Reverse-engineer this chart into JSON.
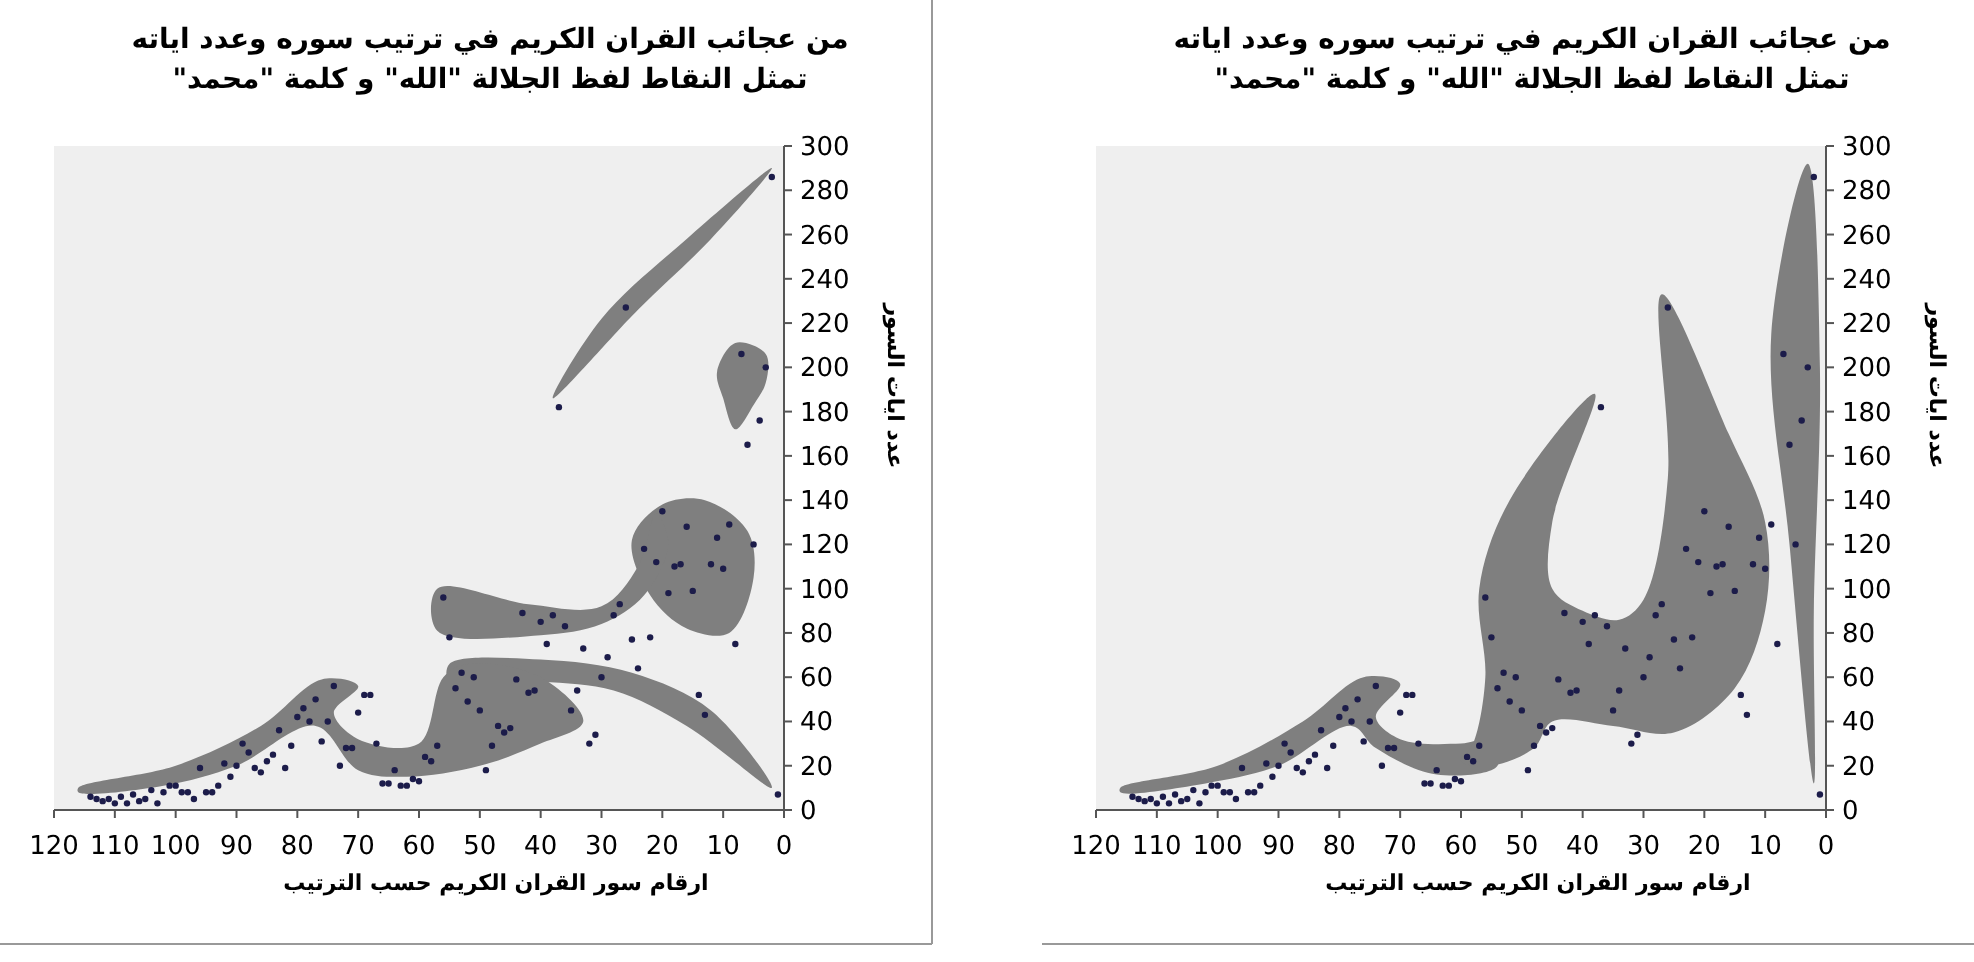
{
  "chart_data": [
    {
      "type": "scatter",
      "title": "من عجائب القران الكريم في ترتيب سوره وعدد اياته",
      "subtitle": "تمثل النقاط لفظ الجلالة \"الله\" و كلمة \"محمد\"",
      "xlabel": "ارقام سور القران الكريم حسب  الترتيب",
      "ylabel": "عدد ايات السور",
      "marker": "circle",
      "color": "#1c1c4a",
      "x": [
        1,
        2,
        3,
        4,
        5,
        6,
        7,
        8,
        9,
        10,
        11,
        12,
        13,
        14,
        15,
        16,
        17,
        18,
        19,
        20,
        21,
        22,
        23,
        24,
        25,
        26,
        27,
        28,
        29,
        30,
        31,
        32,
        33,
        34,
        35,
        36,
        37,
        38,
        39,
        40,
        41,
        42,
        43,
        44,
        45,
        46,
        47,
        48,
        49,
        50,
        51,
        52,
        53,
        54,
        55,
        56,
        57,
        58,
        59,
        60,
        61,
        62,
        63,
        64,
        65,
        66,
        67,
        68,
        69,
        70,
        71,
        72,
        73,
        74,
        75,
        76,
        77,
        78,
        79,
        80,
        81,
        82,
        83,
        84,
        85,
        86,
        87,
        88,
        89,
        90,
        91,
        92,
        93,
        94,
        95,
        96,
        97,
        98,
        99,
        100,
        101,
        102,
        103,
        104,
        105,
        106,
        107,
        108,
        109,
        110,
        111,
        112,
        113,
        114
      ],
      "values": [
        7,
        286,
        200,
        176,
        120,
        165,
        206,
        75,
        129,
        109,
        123,
        111,
        43,
        52,
        99,
        128,
        111,
        110,
        98,
        135,
        112,
        78,
        118,
        64,
        77,
        227,
        93,
        88,
        69,
        60,
        34,
        30,
        73,
        54,
        45,
        83,
        182,
        88,
        75,
        85,
        54,
        53,
        89,
        59,
        37,
        35,
        38,
        29,
        18,
        45,
        60,
        49,
        62,
        55,
        78,
        96,
        29,
        22,
        24,
        13,
        14,
        11,
        11,
        18,
        12,
        12,
        30,
        52,
        52,
        44,
        28,
        28,
        20,
        56,
        40,
        31,
        50,
        40,
        46,
        42,
        29,
        19,
        36,
        25,
        22,
        17,
        19,
        26,
        30,
        20,
        15,
        21,
        11,
        8,
        8,
        19,
        5,
        8,
        8,
        11,
        11,
        8,
        3,
        9,
        5,
        4,
        7,
        3,
        6,
        3,
        5,
        4,
        5,
        6
      ],
      "xlim": [
        120,
        0
      ],
      "xticks": [
        120,
        110,
        100,
        90,
        80,
        70,
        60,
        50,
        40,
        30,
        20,
        10,
        0
      ],
      "ylim": [
        0,
        300
      ],
      "yticks": [
        0,
        20,
        40,
        60,
        80,
        100,
        120,
        140,
        160,
        180,
        200,
        220,
        240,
        260,
        280,
        300
      ]
    },
    {
      "type": "scatter",
      "title": "من عجائب القران الكريم في ترتيب سوره وعدد اياته",
      "subtitle": "تمثل النقاط لفظ الجلالة \"الله\" و كلمة \"محمد\"",
      "xlabel": "ارقام سور القران الكريم حسب  الترتيب",
      "ylabel": "عدد ايات السور",
      "marker": "circle",
      "color": "#1c1c4a",
      "x": [
        1,
        2,
        3,
        4,
        5,
        6,
        7,
        8,
        9,
        10,
        11,
        12,
        13,
        14,
        15,
        16,
        17,
        18,
        19,
        20,
        21,
        22,
        23,
        24,
        25,
        26,
        27,
        28,
        29,
        30,
        31,
        32,
        33,
        34,
        35,
        36,
        37,
        38,
        39,
        40,
        41,
        42,
        43,
        44,
        45,
        46,
        47,
        48,
        49,
        50,
        51,
        52,
        53,
        54,
        55,
        56,
        57,
        58,
        59,
        60,
        61,
        62,
        63,
        64,
        65,
        66,
        67,
        68,
        69,
        70,
        71,
        72,
        73,
        74,
        75,
        76,
        77,
        78,
        79,
        80,
        81,
        82,
        83,
        84,
        85,
        86,
        87,
        88,
        89,
        90,
        91,
        92,
        93,
        94,
        95,
        96,
        97,
        98,
        99,
        100,
        101,
        102,
        103,
        104,
        105,
        106,
        107,
        108,
        109,
        110,
        111,
        112,
        113,
        114
      ],
      "values": [
        7,
        286,
        200,
        176,
        120,
        165,
        206,
        75,
        129,
        109,
        123,
        111,
        43,
        52,
        99,
        128,
        111,
        110,
        98,
        135,
        112,
        78,
        118,
        64,
        77,
        227,
        93,
        88,
        69,
        60,
        34,
        30,
        73,
        54,
        45,
        83,
        182,
        88,
        75,
        85,
        54,
        53,
        89,
        59,
        37,
        35,
        38,
        29,
        18,
        45,
        60,
        49,
        62,
        55,
        78,
        96,
        29,
        22,
        24,
        13,
        14,
        11,
        11,
        18,
        12,
        12,
        30,
        52,
        52,
        44,
        28,
        28,
        20,
        56,
        40,
        31,
        50,
        40,
        46,
        42,
        29,
        19,
        36,
        25,
        22,
        17,
        19,
        26,
        30,
        20,
        15,
        21,
        11,
        8,
        8,
        19,
        5,
        8,
        8,
        11,
        11,
        8,
        3,
        9,
        5,
        4,
        7,
        3,
        6,
        3,
        5,
        4,
        5,
        6
      ],
      "xlim": [
        120,
        0
      ],
      "xticks": [
        120,
        110,
        100,
        90,
        80,
        70,
        60,
        50,
        40,
        30,
        20,
        10,
        0
      ],
      "ylim": [
        0,
        300
      ],
      "yticks": [
        0,
        20,
        40,
        60,
        80,
        100,
        120,
        140,
        160,
        180,
        200,
        220,
        240,
        260,
        280,
        300
      ]
    }
  ]
}
